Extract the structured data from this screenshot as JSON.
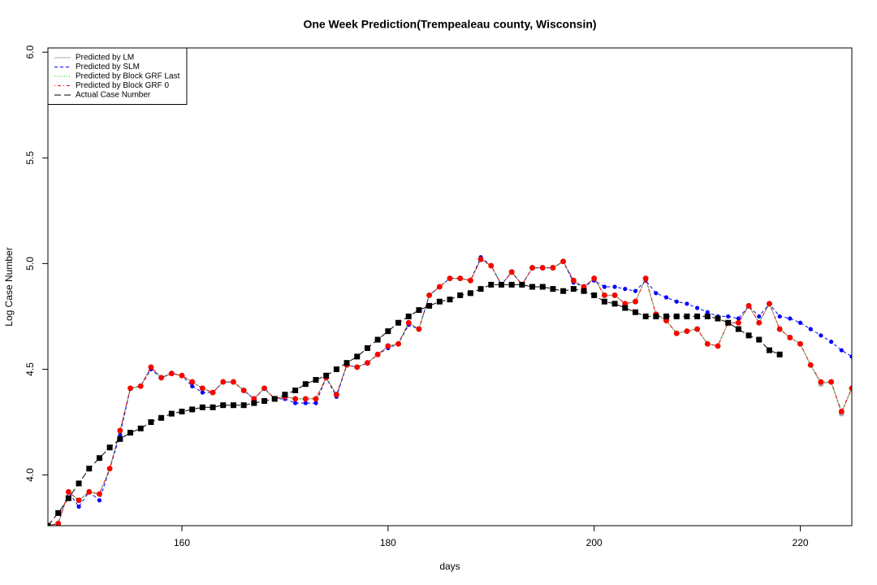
{
  "chart_data": {
    "type": "line",
    "title": "One Week Prediction(Trempealeau county, Wisconsin)",
    "xlabel": "days",
    "ylabel": "Log Case Number",
    "x": [
      147,
      148,
      149,
      150,
      151,
      152,
      153,
      154,
      155,
      156,
      157,
      158,
      159,
      160,
      161,
      162,
      163,
      164,
      165,
      166,
      167,
      168,
      169,
      170,
      171,
      172,
      173,
      174,
      175,
      176,
      177,
      178,
      179,
      180,
      181,
      182,
      183,
      184,
      185,
      186,
      187,
      188,
      189,
      190,
      191,
      192,
      193,
      194,
      195,
      196,
      197,
      198,
      199,
      200,
      201,
      202,
      203,
      204,
      205,
      206,
      207,
      208,
      209,
      210,
      211,
      212,
      213,
      214,
      215,
      216,
      217,
      218,
      219,
      220,
      221,
      222,
      223,
      224,
      225
    ],
    "xlim": [
      147,
      225
    ],
    "xticks": [
      160,
      180,
      200,
      220
    ],
    "ylim": [
      3.76,
      6.02
    ],
    "yticks": [
      {
        "value": 4,
        "label": "4.0"
      },
      {
        "value": 4.5,
        "label": "4.5"
      },
      {
        "value": 5,
        "label": "5.0"
      },
      {
        "value": 5.5,
        "label": "5.5"
      },
      {
        "value": 6,
        "label": "6.0"
      }
    ],
    "legend_position": "top-left",
    "series": [
      {
        "name": "Predicted by LM",
        "color": "#aaaaaa",
        "dash": "solid",
        "marker": "circle",
        "values": [
          3.76,
          3.77,
          3.92,
          3.88,
          3.92,
          3.91,
          4.03,
          4.21,
          4.41,
          4.42,
          4.51,
          4.46,
          4.48,
          4.47,
          4.44,
          4.41,
          4.39,
          4.44,
          4.44,
          4.4,
          4.36,
          4.41,
          4.36,
          4.37,
          4.36,
          4.36,
          4.36,
          4.46,
          4.38,
          4.52,
          4.51,
          4.53,
          4.57,
          4.61,
          4.62,
          4.72,
          4.69,
          4.85,
          4.89,
          4.93,
          4.93,
          4.92,
          5.02,
          4.99,
          4.9,
          4.96,
          4.9,
          4.98,
          4.98,
          4.98,
          5.01,
          4.92,
          4.89,
          4.93,
          4.85,
          4.85,
          4.81,
          4.82,
          4.93,
          4.76,
          4.73,
          4.67,
          4.68,
          4.69,
          4.62,
          4.61,
          4.72,
          4.72,
          4.8,
          4.72,
          4.81,
          4.69,
          4.65,
          4.62,
          4.52,
          4.43,
          4.44,
          4.29,
          4.41
        ]
      },
      {
        "name": "Predicted by SLM",
        "color": "#0000ff",
        "dash": "dashed",
        "marker": "circle",
        "values": [
          3.76,
          3.77,
          3.92,
          3.85,
          3.92,
          3.88,
          4.03,
          4.19,
          4.41,
          4.42,
          4.5,
          4.46,
          4.48,
          4.47,
          4.42,
          4.39,
          4.39,
          4.44,
          4.44,
          4.4,
          4.36,
          4.41,
          4.36,
          4.36,
          4.34,
          4.34,
          4.34,
          4.46,
          4.37,
          4.52,
          4.51,
          4.53,
          4.57,
          4.6,
          4.62,
          4.71,
          4.69,
          4.85,
          4.89,
          4.93,
          4.93,
          4.92,
          5.03,
          4.99,
          4.9,
          4.96,
          4.9,
          4.98,
          4.98,
          4.98,
          5.01,
          4.91,
          4.89,
          4.92,
          4.89,
          4.89,
          4.88,
          4.87,
          4.92,
          4.86,
          4.84,
          4.82,
          4.81,
          4.79,
          4.77,
          4.75,
          4.75,
          4.74,
          4.8,
          4.75,
          4.81,
          4.75,
          4.74,
          4.72,
          4.69,
          4.66,
          4.63,
          4.59,
          4.56
        ]
      },
      {
        "name": "Predicted by Block GRF Last",
        "color": "#00cc00",
        "dash": "dotted",
        "marker": "circle",
        "values": [
          3.76,
          3.77,
          3.92,
          3.88,
          3.92,
          3.91,
          4.03,
          4.21,
          4.41,
          4.42,
          4.51,
          4.46,
          4.48,
          4.47,
          4.44,
          4.41,
          4.39,
          4.44,
          4.44,
          4.4,
          4.36,
          4.41,
          4.36,
          4.37,
          4.36,
          4.36,
          4.36,
          4.46,
          4.38,
          4.52,
          4.51,
          4.53,
          4.57,
          4.61,
          4.62,
          4.72,
          4.69,
          4.85,
          4.89,
          4.93,
          4.93,
          4.92,
          5.02,
          4.99,
          4.9,
          4.96,
          4.9,
          4.98,
          4.98,
          4.98,
          5.01,
          4.92,
          4.89,
          4.93,
          4.85,
          4.85,
          4.81,
          4.82,
          4.93,
          4.76,
          4.73,
          4.67,
          4.68,
          4.69,
          4.62,
          4.61,
          4.72,
          4.72,
          4.8,
          4.72,
          4.81,
          4.69,
          4.65,
          4.62,
          4.52,
          4.44,
          4.44,
          4.3,
          4.41
        ]
      },
      {
        "name": "Predicted by Block GRF 0",
        "color": "#ff0000",
        "dash": "dotdash",
        "marker": "circle",
        "values": [
          3.76,
          3.77,
          3.92,
          3.88,
          3.92,
          3.91,
          4.03,
          4.21,
          4.41,
          4.42,
          4.51,
          4.46,
          4.48,
          4.47,
          4.44,
          4.41,
          4.39,
          4.44,
          4.44,
          4.4,
          4.36,
          4.41,
          4.36,
          4.37,
          4.36,
          4.36,
          4.36,
          4.46,
          4.38,
          4.52,
          4.51,
          4.53,
          4.57,
          4.61,
          4.62,
          4.72,
          4.69,
          4.85,
          4.89,
          4.93,
          4.93,
          4.92,
          5.02,
          4.99,
          4.9,
          4.96,
          4.9,
          4.98,
          4.98,
          4.98,
          5.01,
          4.92,
          4.89,
          4.93,
          4.85,
          4.85,
          4.81,
          4.82,
          4.93,
          4.76,
          4.73,
          4.67,
          4.68,
          4.69,
          4.62,
          4.61,
          4.72,
          4.72,
          4.8,
          4.72,
          4.81,
          4.69,
          4.65,
          4.62,
          4.52,
          4.44,
          4.44,
          4.3,
          4.41
        ]
      },
      {
        "name": "Actual Case Number",
        "color": "#000000",
        "dash": "longdash",
        "marker": "square",
        "values": [
          3.76,
          3.82,
          3.89,
          3.96,
          4.03,
          4.08,
          4.13,
          4.17,
          4.2,
          4.22,
          4.25,
          4.27,
          4.29,
          4.3,
          4.31,
          4.32,
          4.32,
          4.33,
          4.33,
          4.33,
          4.34,
          4.35,
          4.36,
          4.38,
          4.4,
          4.43,
          4.45,
          4.47,
          4.5,
          4.53,
          4.56,
          4.6,
          4.64,
          4.68,
          4.72,
          4.75,
          4.78,
          4.8,
          4.82,
          4.83,
          4.85,
          4.86,
          4.88,
          4.9,
          4.9,
          4.9,
          4.9,
          4.89,
          4.89,
          4.88,
          4.87,
          4.88,
          4.87,
          4.85,
          4.82,
          4.81,
          4.79,
          4.77,
          4.75,
          4.75,
          4.75,
          4.75,
          4.75,
          4.75,
          4.75,
          4.74,
          4.72,
          4.69,
          4.66,
          4.64,
          4.59,
          4.57,
          null,
          null,
          null,
          null,
          null,
          null,
          null
        ]
      }
    ]
  }
}
